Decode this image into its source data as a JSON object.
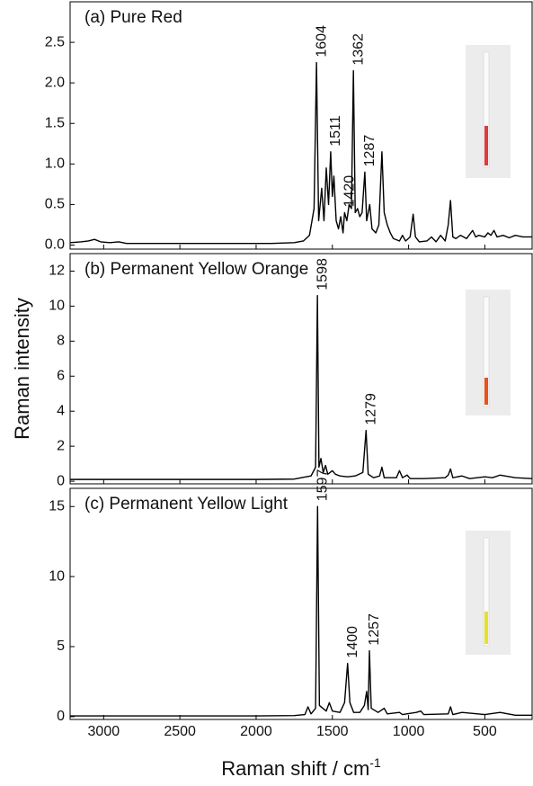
{
  "chart_data": [
    {
      "type": "line",
      "title": "(a) Pure Red",
      "color": "#000000",
      "xlim": [
        3220,
        190
      ],
      "ylim": [
        -0.05,
        3.0
      ],
      "yticks": [
        {
          "value": 0,
          "label": "0.0"
        },
        0.5,
        {
          "value": 1,
          "label": "1.0"
        },
        1.5,
        {
          "value": 2,
          "label": "2.0"
        },
        2.5
      ],
      "x": [
        3220,
        3150,
        3100,
        3060,
        3020,
        2960,
        2900,
        2850,
        2700,
        2500,
        2300,
        2100,
        1900,
        1750,
        1690,
        1650,
        1620,
        1604,
        1590,
        1570,
        1555,
        1540,
        1525,
        1511,
        1500,
        1490,
        1475,
        1460,
        1445,
        1430,
        1420,
        1405,
        1390,
        1375,
        1362,
        1350,
        1335,
        1320,
        1305,
        1287,
        1275,
        1255,
        1240,
        1215,
        1195,
        1175,
        1160,
        1140,
        1120,
        1100,
        1060,
        1040,
        1020,
        990,
        970,
        955,
        930,
        880,
        850,
        820,
        790,
        760,
        740,
        725,
        710,
        690,
        660,
        620,
        580,
        560,
        540,
        500,
        480,
        460,
        440,
        420,
        380,
        340,
        300,
        250,
        190
      ],
      "values": [
        0.03,
        0.04,
        0.05,
        0.07,
        0.04,
        0.03,
        0.04,
        0.02,
        0.02,
        0.02,
        0.02,
        0.02,
        0.02,
        0.03,
        0.05,
        0.12,
        0.45,
        2.25,
        0.3,
        0.7,
        0.3,
        0.95,
        0.5,
        1.15,
        0.6,
        0.85,
        0.3,
        0.2,
        0.35,
        0.15,
        0.4,
        0.3,
        0.5,
        0.45,
        2.15,
        0.4,
        0.45,
        0.35,
        0.4,
        0.9,
        0.3,
        0.5,
        0.2,
        0.15,
        0.25,
        1.15,
        0.4,
        0.25,
        0.15,
        0.08,
        0.05,
        0.12,
        0.05,
        0.1,
        0.38,
        0.1,
        0.04,
        0.05,
        0.1,
        0.04,
        0.12,
        0.05,
        0.25,
        0.55,
        0.1,
        0.08,
        0.12,
        0.08,
        0.18,
        0.1,
        0.12,
        0.1,
        0.15,
        0.12,
        0.18,
        0.1,
        0.12,
        0.09,
        0.12,
        0.1,
        0.1
      ],
      "peak_labels": [
        1604,
        1511,
        1420,
        1362,
        1287
      ]
    },
    {
      "type": "line",
      "title": "(b) Permanent Yellow Orange",
      "color": "#000000",
      "xlim": [
        3220,
        190
      ],
      "ylim": [
        -0.15,
        13.0
      ],
      "yticks": [
        0,
        2,
        4,
        6,
        8,
        10,
        12
      ],
      "ylabel": "Raman intensity",
      "x": [
        3220,
        2800,
        2400,
        2000,
        1750,
        1640,
        1610,
        1598,
        1588,
        1575,
        1560,
        1545,
        1530,
        1500,
        1480,
        1450,
        1400,
        1350,
        1300,
        1279,
        1265,
        1230,
        1190,
        1175,
        1160,
        1080,
        1060,
        1040,
        1010,
        990,
        900,
        760,
        740,
        725,
        710,
        650,
        600,
        500,
        450,
        400,
        300,
        190
      ],
      "values": [
        0.1,
        0.1,
        0.1,
        0.1,
        0.12,
        0.3,
        0.8,
        10.6,
        0.8,
        1.3,
        0.5,
        0.9,
        0.4,
        0.6,
        0.4,
        0.3,
        0.25,
        0.3,
        0.5,
        2.9,
        0.4,
        0.2,
        0.3,
        0.8,
        0.2,
        0.2,
        0.6,
        0.2,
        0.35,
        0.15,
        0.15,
        0.2,
        0.35,
        0.7,
        0.2,
        0.3,
        0.15,
        0.25,
        0.2,
        0.35,
        0.2,
        0.15
      ],
      "peak_labels": [
        1598,
        1279
      ]
    },
    {
      "type": "line",
      "title": "(c) Permanent Yellow Light",
      "color": "#000000",
      "xlim": [
        3220,
        190
      ],
      "ylim": [
        -0.2,
        16.3
      ],
      "yticks": [
        0,
        5,
        10,
        15
      ],
      "xticks": [
        3000,
        2500,
        2000,
        1500,
        1000,
        500
      ],
      "xlabel": "Raman shift / cm",
      "xlabel_superscript": "-1",
      "x": [
        3220,
        2800,
        2400,
        2000,
        1750,
        1680,
        1660,
        1640,
        1610,
        1597,
        1585,
        1540,
        1520,
        1500,
        1450,
        1420,
        1400,
        1385,
        1360,
        1320,
        1290,
        1275,
        1265,
        1257,
        1245,
        1200,
        1160,
        1140,
        1060,
        1040,
        950,
        920,
        900,
        740,
        725,
        710,
        650,
        500,
        400,
        300,
        190
      ],
      "values": [
        0.05,
        0.05,
        0.05,
        0.05,
        0.08,
        0.15,
        0.7,
        0.2,
        0.6,
        15.0,
        0.8,
        0.4,
        1.0,
        0.4,
        0.3,
        1.0,
        3.8,
        1.0,
        0.3,
        0.3,
        0.8,
        1.8,
        0.5,
        4.7,
        0.6,
        0.3,
        0.6,
        0.2,
        0.3,
        0.15,
        0.3,
        0.4,
        0.15,
        0.2,
        0.7,
        0.15,
        0.3,
        0.15,
        0.3,
        0.1,
        0.1
      ],
      "peak_labels": [
        1597,
        1400,
        1257
      ]
    }
  ]
}
